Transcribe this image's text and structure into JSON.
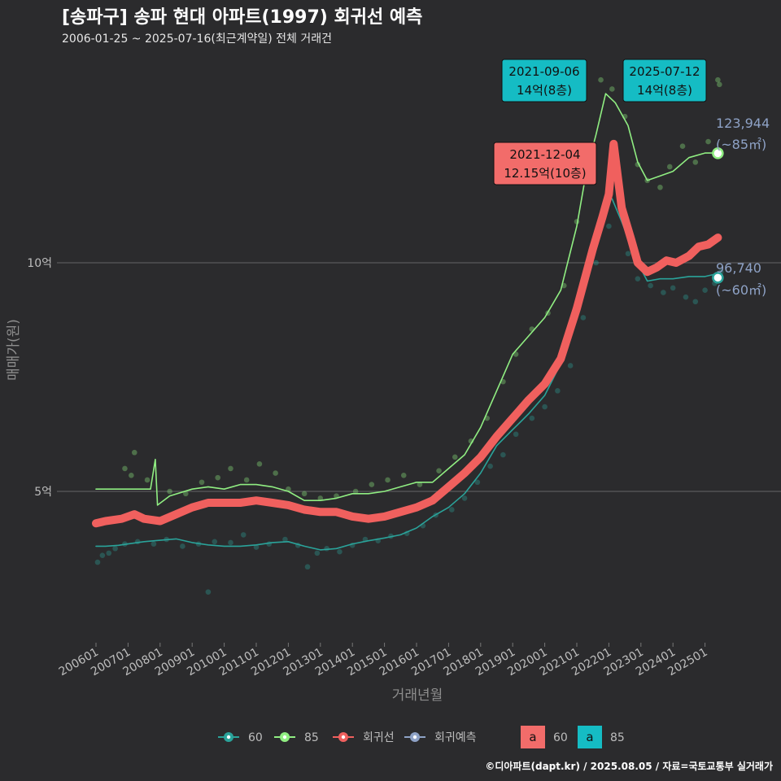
{
  "header": {
    "title": "[송파구] 송파 현대 아파트(1997) 회귀선 예측",
    "subtitle": "2006-01-25 ~ 2025-07-16(최근계약일) 전체 거래건"
  },
  "footer": {
    "credit": "©디아파트(dapt.kr) / 2025.08.05 / 자료=국토교통부 실거래가"
  },
  "colors": {
    "background": "#2b2b2d",
    "s60": "#2aa39a",
    "s85": "#90ee82",
    "regression": "#f0605e",
    "forecast": "#8ea2c6",
    "callout_red": "#f26c6a",
    "callout_teal": "#15bcc4"
  },
  "chart_data": {
    "type": "line",
    "xlabel": "거래년월",
    "ylabel": "매매가(원)",
    "y_ticks": [
      {
        "value": 50000,
        "label": "5억"
      },
      {
        "value": 100000,
        "label": "10억"
      }
    ],
    "x_ticks": [
      "200601",
      "200701",
      "200801",
      "200901",
      "201001",
      "201101",
      "201201",
      "201301",
      "201401",
      "201501",
      "201601",
      "201701",
      "201801",
      "201901",
      "202001",
      "202101",
      "202201",
      "202301",
      "202401",
      "202501"
    ],
    "x_range": [
      2006.0,
      2025.7
    ],
    "y_range": [
      19000,
      155000
    ],
    "series": [
      {
        "name": "60",
        "points": [
          [
            2006.0,
            38000
          ],
          [
            2006.3,
            38000
          ],
          [
            2006.7,
            38200
          ],
          [
            2007.0,
            38500
          ],
          [
            2007.5,
            39000
          ],
          [
            2008.0,
            39300
          ],
          [
            2008.5,
            39600
          ],
          [
            2009.0,
            38800
          ],
          [
            2009.5,
            38300
          ],
          [
            2010.0,
            38000
          ],
          [
            2010.5,
            38000
          ],
          [
            2011.0,
            38300
          ],
          [
            2011.5,
            38800
          ],
          [
            2012.0,
            39000
          ],
          [
            2012.5,
            38000
          ],
          [
            2013.0,
            37200
          ],
          [
            2013.5,
            37500
          ],
          [
            2014.0,
            38500
          ],
          [
            2014.5,
            39200
          ],
          [
            2015.0,
            39800
          ],
          [
            2015.5,
            40500
          ],
          [
            2016.0,
            42000
          ],
          [
            2016.5,
            44500
          ],
          [
            2017.0,
            46500
          ],
          [
            2017.5,
            49500
          ],
          [
            2018.0,
            54000
          ],
          [
            2018.5,
            60000
          ],
          [
            2019.0,
            63500
          ],
          [
            2019.5,
            67000
          ],
          [
            2020.0,
            71000
          ],
          [
            2020.5,
            78000
          ],
          [
            2021.0,
            88000
          ],
          [
            2021.5,
            103000
          ],
          [
            2021.9,
            114000
          ],
          [
            2022.1,
            114000
          ],
          [
            2022.4,
            109000
          ],
          [
            2022.9,
            100000
          ],
          [
            2023.2,
            96000
          ],
          [
            2023.6,
            96500
          ],
          [
            2024.0,
            96500
          ],
          [
            2024.5,
            97000
          ],
          [
            2025.0,
            97000
          ],
          [
            2025.3,
            97500
          ]
        ]
      },
      {
        "name": "85",
        "points": [
          [
            2006.0,
            50500
          ],
          [
            2007.0,
            50500
          ],
          [
            2007.7,
            50500
          ],
          [
            2007.85,
            57000
          ],
          [
            2007.92,
            47000
          ],
          [
            2008.3,
            49000
          ],
          [
            2009.0,
            50500
          ],
          [
            2009.5,
            51000
          ],
          [
            2010.0,
            50500
          ],
          [
            2010.5,
            51500
          ],
          [
            2011.0,
            51500
          ],
          [
            2011.5,
            51000
          ],
          [
            2012.0,
            50000
          ],
          [
            2012.5,
            48000
          ],
          [
            2013.0,
            48000
          ],
          [
            2013.5,
            48500
          ],
          [
            2014.0,
            49500
          ],
          [
            2014.5,
            49500
          ],
          [
            2015.0,
            50000
          ],
          [
            2015.5,
            51000
          ],
          [
            2016.0,
            52000
          ],
          [
            2016.5,
            52000
          ],
          [
            2017.0,
            55000
          ],
          [
            2017.5,
            58000
          ],
          [
            2018.0,
            64000
          ],
          [
            2018.5,
            72000
          ],
          [
            2019.0,
            80000
          ],
          [
            2019.5,
            84000
          ],
          [
            2020.0,
            88000
          ],
          [
            2020.5,
            94000
          ],
          [
            2021.0,
            108000
          ],
          [
            2021.3,
            120000
          ],
          [
            2021.6,
            128000
          ],
          [
            2021.9,
            137000
          ],
          [
            2022.2,
            135000
          ],
          [
            2022.6,
            130000
          ],
          [
            2022.9,
            122000
          ],
          [
            2023.2,
            118000
          ],
          [
            2023.6,
            119000
          ],
          [
            2024.0,
            120000
          ],
          [
            2024.5,
            123000
          ],
          [
            2025.0,
            124000
          ],
          [
            2025.4,
            124000
          ]
        ]
      },
      {
        "name": "회귀선",
        "points": [
          [
            2006.0,
            43000
          ],
          [
            2006.3,
            43500
          ],
          [
            2006.8,
            44000
          ],
          [
            2007.2,
            45000
          ],
          [
            2007.5,
            44000
          ],
          [
            2008.0,
            43500
          ],
          [
            2008.5,
            45000
          ],
          [
            2009.0,
            46500
          ],
          [
            2009.5,
            47500
          ],
          [
            2010.0,
            47500
          ],
          [
            2010.5,
            47500
          ],
          [
            2011.0,
            48000
          ],
          [
            2011.5,
            47500
          ],
          [
            2012.0,
            47000
          ],
          [
            2012.5,
            46000
          ],
          [
            2013.0,
            45500
          ],
          [
            2013.5,
            45500
          ],
          [
            2014.0,
            44500
          ],
          [
            2014.5,
            44000
          ],
          [
            2015.0,
            44500
          ],
          [
            2015.5,
            45500
          ],
          [
            2016.0,
            46500
          ],
          [
            2016.5,
            48000
          ],
          [
            2017.0,
            51000
          ],
          [
            2017.5,
            54000
          ],
          [
            2018.0,
            57500
          ],
          [
            2018.5,
            62000
          ],
          [
            2019.0,
            66000
          ],
          [
            2019.5,
            70000
          ],
          [
            2020.0,
            73500
          ],
          [
            2020.5,
            79000
          ],
          [
            2021.0,
            90000
          ],
          [
            2021.5,
            103000
          ],
          [
            2021.8,
            110000
          ],
          [
            2022.0,
            115000
          ],
          [
            2022.15,
            126000
          ],
          [
            2022.4,
            112000
          ],
          [
            2022.7,
            105000
          ],
          [
            2022.9,
            100000
          ],
          [
            2023.2,
            98000
          ],
          [
            2023.5,
            99000
          ],
          [
            2023.8,
            100500
          ],
          [
            2024.1,
            100000
          ],
          [
            2024.5,
            101500
          ],
          [
            2024.8,
            103500
          ],
          [
            2025.1,
            104000
          ],
          [
            2025.4,
            105500
          ]
        ]
      }
    ],
    "scatter_60": [
      [
        2006.05,
        34500
      ],
      [
        2006.2,
        36000
      ],
      [
        2006.4,
        36500
      ],
      [
        2006.6,
        37500
      ],
      [
        2006.9,
        38500
      ],
      [
        2007.3,
        39000
      ],
      [
        2007.8,
        38500
      ],
      [
        2008.2,
        39500
      ],
      [
        2008.7,
        38000
      ],
      [
        2009.2,
        38500
      ],
      [
        2009.7,
        39000
      ],
      [
        2010.2,
        38800
      ],
      [
        2010.6,
        40500
      ],
      [
        2011.0,
        37800
      ],
      [
        2011.4,
        38500
      ],
      [
        2011.9,
        39500
      ],
      [
        2012.3,
        38200
      ],
      [
        2012.6,
        33500
      ],
      [
        2012.9,
        36500
      ],
      [
        2013.2,
        37500
      ],
      [
        2013.6,
        36800
      ],
      [
        2014.0,
        38200
      ],
      [
        2014.4,
        39500
      ],
      [
        2014.8,
        39200
      ],
      [
        2015.2,
        40200
      ],
      [
        2015.7,
        40800
      ],
      [
        2016.2,
        42500
      ],
      [
        2016.6,
        44800
      ],
      [
        2017.1,
        46000
      ],
      [
        2017.5,
        48500
      ],
      [
        2017.9,
        52000
      ],
      [
        2018.3,
        55500
      ],
      [
        2018.7,
        58000
      ],
      [
        2019.1,
        62500
      ],
      [
        2019.6,
        66000
      ],
      [
        2020.0,
        68500
      ],
      [
        2020.4,
        72000
      ],
      [
        2020.8,
        77500
      ],
      [
        2021.2,
        88000
      ],
      [
        2021.6,
        100000
      ],
      [
        2022.0,
        108000
      ],
      [
        2022.6,
        102000
      ],
      [
        2022.9,
        96500
      ],
      [
        2023.3,
        95000
      ],
      [
        2023.7,
        93500
      ],
      [
        2024.0,
        94500
      ],
      [
        2024.4,
        92500
      ],
      [
        2024.7,
        91500
      ],
      [
        2025.0,
        94000
      ],
      [
        2025.3,
        95500
      ],
      [
        2025.5,
        98000
      ],
      [
        2009.5,
        28000
      ]
    ],
    "scatter_85": [
      [
        2006.9,
        55000
      ],
      [
        2007.1,
        53500
      ],
      [
        2007.2,
        58500
      ],
      [
        2007.6,
        52500
      ],
      [
        2008.3,
        50000
      ],
      [
        2008.8,
        49500
      ],
      [
        2009.3,
        52000
      ],
      [
        2009.8,
        53000
      ],
      [
        2010.2,
        55000
      ],
      [
        2010.7,
        52500
      ],
      [
        2011.1,
        56000
      ],
      [
        2011.6,
        54000
      ],
      [
        2012.0,
        50500
      ],
      [
        2012.5,
        49500
      ],
      [
        2013.0,
        48500
      ],
      [
        2013.5,
        49000
      ],
      [
        2014.1,
        50000
      ],
      [
        2014.6,
        51500
      ],
      [
        2015.1,
        52500
      ],
      [
        2015.6,
        53500
      ],
      [
        2016.1,
        51500
      ],
      [
        2016.7,
        54500
      ],
      [
        2017.2,
        57500
      ],
      [
        2017.7,
        61000
      ],
      [
        2018.2,
        66000
      ],
      [
        2018.7,
        74000
      ],
      [
        2019.1,
        80000
      ],
      [
        2019.6,
        85500
      ],
      [
        2020.1,
        89000
      ],
      [
        2020.6,
        95000
      ],
      [
        2021.0,
        109000
      ],
      [
        2021.4,
        122000
      ],
      [
        2021.75,
        140000
      ],
      [
        2022.1,
        138000
      ],
      [
        2022.5,
        132000
      ],
      [
        2022.9,
        121500
      ],
      [
        2023.2,
        118000
      ],
      [
        2023.6,
        116500
      ],
      [
        2023.9,
        121000
      ],
      [
        2024.3,
        125500
      ],
      [
        2024.7,
        122000
      ],
      [
        2025.1,
        126500
      ],
      [
        2025.4,
        140000
      ],
      [
        2025.45,
        139000
      ]
    ],
    "callouts": [
      {
        "date": "2021-09-06",
        "text": "14억(8층)",
        "x": 2021.68,
        "y": 140000,
        "color": "teal"
      },
      {
        "date": "2021-12-04",
        "text": "12.15억(10층)",
        "x": 2021.92,
        "y": 121500,
        "color": "red"
      },
      {
        "date": "2025-07-12",
        "text": "14억(8층)",
        "x": 2025.53,
        "y": 140000,
        "color": "teal"
      }
    ],
    "end_labels": [
      {
        "value": "123,944",
        "unit": "(~85㎡)",
        "y": 123944
      },
      {
        "value": "96,740",
        "unit": "(~60㎡)",
        "y": 96740
      }
    ],
    "legend": [
      {
        "label": "60",
        "series": "60"
      },
      {
        "label": "85",
        "series": "85"
      },
      {
        "label": "회귀선",
        "series": "회귀선"
      },
      {
        "label": "회귀예측",
        "series": "회귀예측"
      }
    ],
    "fill_legend": {
      "key_text": "a",
      "items": [
        {
          "label": "60",
          "color": "red"
        },
        {
          "label": "85",
          "color": "teal"
        }
      ]
    }
  }
}
